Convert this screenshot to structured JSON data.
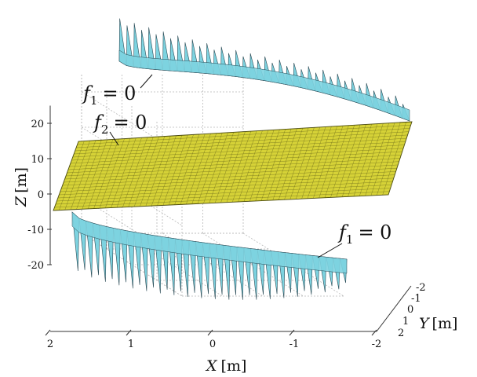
{
  "chart_data": {
    "type": "surface3d",
    "xlabel_var": "X",
    "xlabel_unit": "[m]",
    "ylabel_var": "Y",
    "ylabel_unit": "[m]",
    "zlabel_var": "Z",
    "zlabel_unit": "[m]",
    "x_ticks": [
      "2",
      "1",
      "0",
      "-1",
      "-2"
    ],
    "y_ticks": [
      "-2",
      "-1",
      "0",
      "1",
      "2"
    ],
    "z_ticks": [
      "20",
      "10",
      "0",
      "-10",
      "-20"
    ],
    "xlim": [
      -2,
      2
    ],
    "ylim": [
      -2,
      2
    ],
    "zlim": [
      -20,
      20
    ],
    "grid": true,
    "surfaces": [
      {
        "name": "f1_upper",
        "function": "f",
        "subscript": "1",
        "equals": "= 0",
        "color": "#7dd3e0",
        "edge_color": "#2a4a55"
      },
      {
        "name": "f2_plane",
        "function": "f",
        "subscript": "2",
        "equals": "= 0",
        "color": "#d6d237",
        "edge_color": "#4a4a10"
      },
      {
        "name": "f1_lower",
        "function": "f",
        "subscript": "1",
        "equals": "= 0",
        "color": "#7dd3e0",
        "edge_color": "#2a4a55"
      }
    ]
  }
}
